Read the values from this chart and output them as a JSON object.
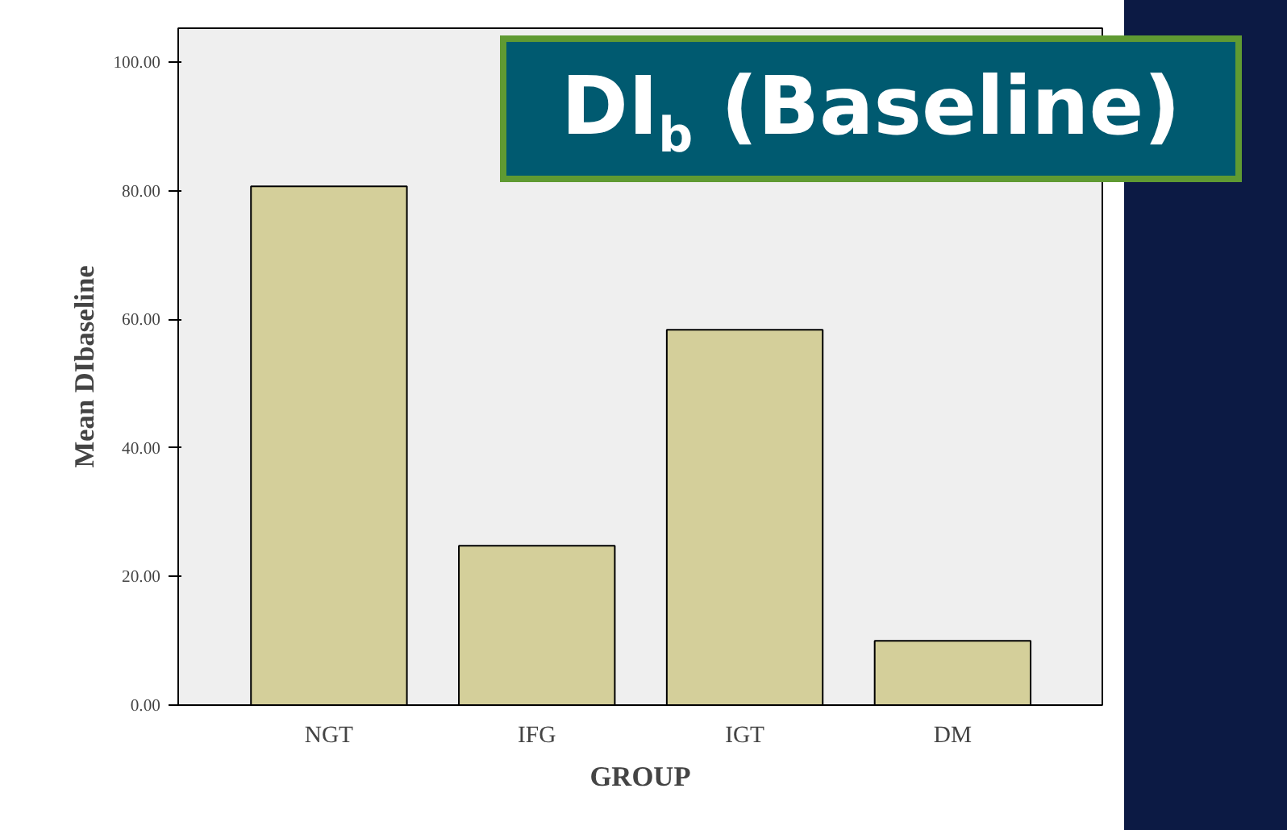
{
  "chart_data": {
    "type": "bar",
    "title": "DI$_{b}$ (Baseline)",
    "xlabel": "GROUP",
    "ylabel": "Mean DIbaseline",
    "categories": [
      "NGT",
      "IFG",
      "IGT",
      "DM"
    ],
    "values": [
      80.7,
      24.8,
      58.4,
      10.0
    ],
    "color": "#d4cf9a",
    "ylim": [
      0,
      105.3
    ],
    "yticks": [
      {
        "value": 0,
        "label": "0.00"
      },
      {
        "value": 20,
        "label": "20.00"
      },
      {
        "value": 40,
        "label": "40.00"
      },
      {
        "value": 60,
        "label": "60.00"
      },
      {
        "value": 80,
        "label": "80.00"
      },
      {
        "value": 100,
        "label": "100.00"
      }
    ],
    "grid": false
  }
}
